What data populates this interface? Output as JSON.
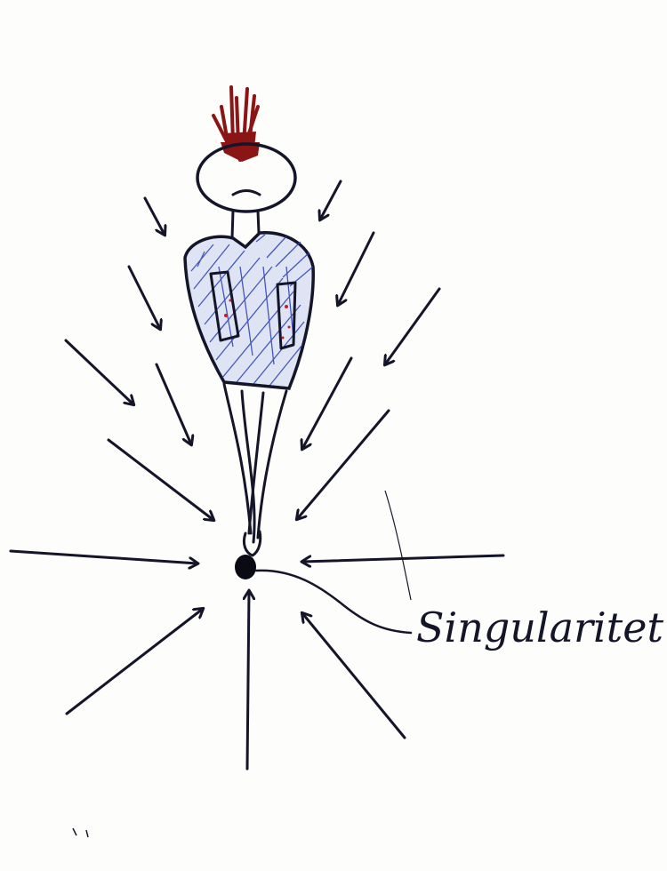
{
  "diagram": {
    "label": "Singularitet",
    "figure": "person-stretched-toward-singularity",
    "arrows": "pointing-inward-to-singularity"
  },
  "colors": {
    "ink": "#15152a",
    "hair": "#8b1414",
    "shirt_hatch": "#2b3fb0",
    "blood": "#c02020",
    "paper": "#fdfdfb"
  }
}
